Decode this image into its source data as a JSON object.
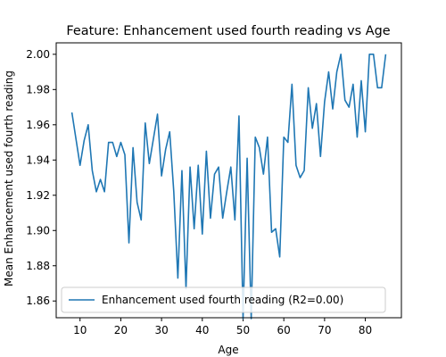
{
  "chart_data": {
    "type": "line",
    "title": "Feature: Enhancement used fourth reading vs Age",
    "xlabel": "Age",
    "ylabel": "Mean Enhancement used fourth reading",
    "xlim": [
      4.15,
      88.85
    ],
    "ylim": [
      1.8505,
      2.0065
    ],
    "xticks": [
      10,
      20,
      30,
      40,
      50,
      60,
      70,
      80
    ],
    "yticks": [
      1.86,
      1.88,
      1.9,
      1.92,
      1.94,
      1.96,
      1.98,
      2.0
    ],
    "ytick_labels": [
      "1.86",
      "1.88",
      "1.90",
      "1.92",
      "1.94",
      "1.96",
      "1.98",
      "2.00"
    ],
    "grid": false,
    "legend_position": "lower left",
    "series": [
      {
        "name": "Enhancement used fourth reading (R2=0.00)",
        "color": "#1f77b4",
        "x": [
          8,
          9,
          10,
          11,
          12,
          13,
          14,
          15,
          16,
          17,
          18,
          19,
          20,
          21,
          22,
          23,
          24,
          25,
          26,
          27,
          28,
          29,
          30,
          31,
          32,
          33,
          34,
          35,
          36,
          37,
          38,
          39,
          40,
          41,
          42,
          43,
          44,
          45,
          46,
          47,
          48,
          49,
          50,
          51,
          52,
          53,
          54,
          55,
          56,
          57,
          58,
          59,
          60,
          61,
          62,
          63,
          64,
          65,
          66,
          67,
          68,
          69,
          70,
          71,
          72,
          73,
          74,
          75,
          76,
          77,
          78,
          79,
          80,
          81,
          82,
          83,
          84,
          85
        ],
        "y": [
          1.967,
          1.952,
          1.937,
          1.951,
          1.96,
          1.934,
          1.922,
          1.929,
          1.922,
          1.95,
          1.95,
          1.942,
          1.95,
          1.943,
          1.893,
          1.947,
          1.916,
          1.906,
          1.961,
          1.938,
          1.952,
          1.966,
          1.931,
          1.946,
          1.956,
          1.922,
          1.873,
          1.934,
          1.867,
          1.936,
          1.901,
          1.937,
          1.898,
          1.945,
          1.907,
          1.932,
          1.936,
          1.907,
          1.922,
          1.936,
          1.906,
          1.965,
          1.85,
          1.941,
          1.85,
          1.953,
          1.947,
          1.932,
          1.953,
          1.899,
          1.901,
          1.885,
          1.953,
          1.95,
          1.983,
          1.937,
          1.93,
          1.934,
          1.981,
          1.958,
          1.972,
          1.942,
          1.973,
          1.99,
          1.969,
          1.99,
          2.0,
          1.974,
          1.97,
          1.983,
          1.953,
          1.985,
          1.956,
          2.0,
          2.0,
          1.981,
          1.981,
          2.0
        ]
      }
    ]
  }
}
